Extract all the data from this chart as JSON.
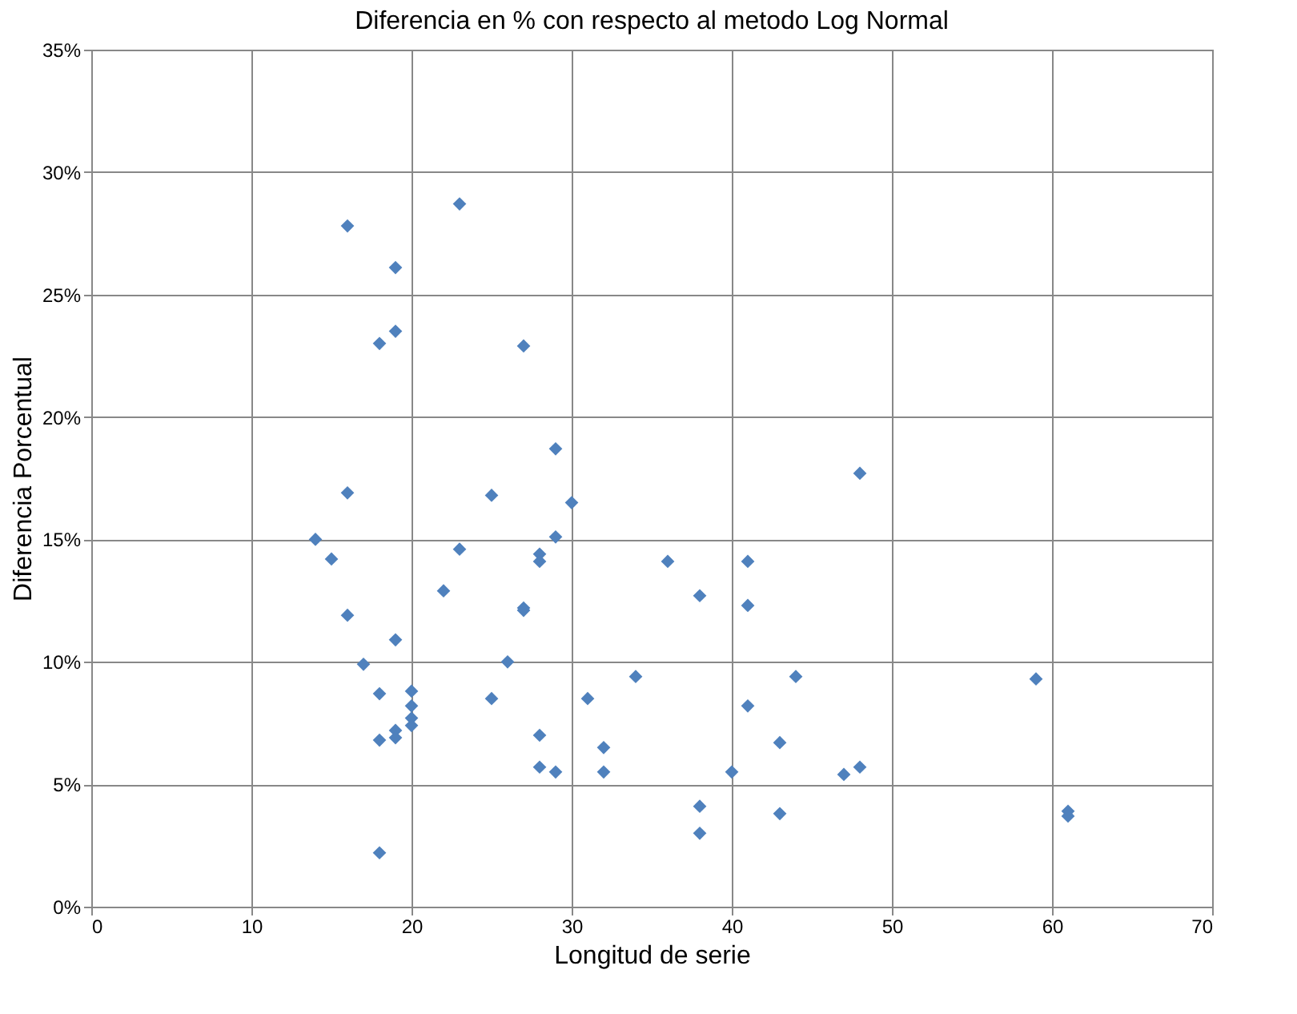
{
  "chart_data": {
    "type": "scatter",
    "title": "Diferencia en % con respecto al metodo Log Normal",
    "xlabel": "Longitud de serie",
    "ylabel": "Diferencia Porcentual",
    "x": [
      16,
      23,
      19,
      19,
      18,
      27,
      29,
      48,
      16,
      25,
      30,
      14,
      29,
      23,
      15,
      28,
      28,
      36,
      41,
      22,
      38,
      27,
      27,
      41,
      16,
      19,
      26,
      17,
      34,
      44,
      59,
      20,
      18,
      25,
      31,
      41,
      20,
      20,
      20,
      19,
      28,
      19,
      18,
      32,
      43,
      28,
      29,
      32,
      40,
      47,
      48,
      38,
      43,
      61,
      61,
      38,
      18
    ],
    "series": [
      {
        "color": "#4f81bd",
        "values": [
          27.8,
          28.7,
          26.1,
          23.5,
          23.0,
          22.9,
          18.7,
          17.7,
          16.9,
          16.8,
          16.5,
          15.0,
          15.1,
          14.6,
          14.2,
          14.4,
          14.1,
          14.1,
          14.1,
          12.9,
          12.7,
          12.2,
          12.1,
          12.3,
          11.9,
          10.9,
          10.0,
          9.9,
          9.4,
          9.4,
          9.3,
          8.8,
          8.7,
          8.5,
          8.5,
          8.2,
          8.2,
          7.7,
          7.4,
          7.2,
          7.0,
          6.9,
          6.8,
          6.5,
          6.7,
          5.7,
          5.5,
          5.5,
          5.5,
          5.4,
          5.7,
          4.1,
          3.8,
          3.9,
          3.7,
          3.0,
          2.2
        ]
      }
    ],
    "xlim": [
      0,
      70
    ],
    "xticks": [
      0,
      10,
      20,
      30,
      40,
      50,
      60,
      70
    ],
    "ylim": [
      0,
      35
    ],
    "yticks": [
      {
        "value": 0,
        "label": "0%"
      },
      {
        "value": 5,
        "label": "5%"
      },
      {
        "value": 10,
        "label": "10%"
      },
      {
        "value": 15,
        "label": "15%"
      },
      {
        "value": 20,
        "label": "20%"
      },
      {
        "value": 25,
        "label": "25%"
      },
      {
        "value": 30,
        "label": "30%"
      },
      {
        "value": 35,
        "label": "35%"
      }
    ],
    "grid": true,
    "marker": "diamond"
  }
}
